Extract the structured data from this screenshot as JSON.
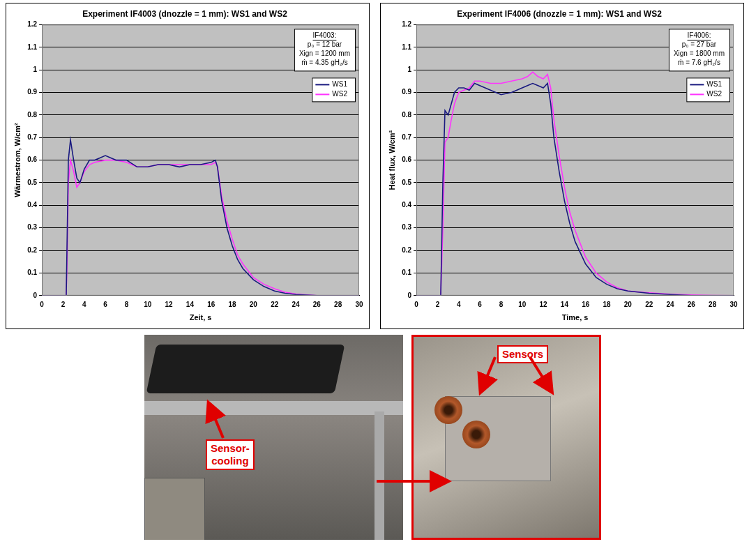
{
  "chart_data": [
    {
      "type": "line",
      "title": "Experiment IF4003 (dnozzle = 1 mm): WS1 and WS2",
      "x_label": "Zeit, s",
      "y_label": "Wärmestrom, W/cm²",
      "annotation": [
        "IF4003:",
        "p₀ = 12 bar",
        "Xign = 1200 mm",
        "ṁ = 4.35 gH₂/s"
      ],
      "x": [
        0,
        2,
        2.3,
        2.4,
        2.5,
        2.7,
        3,
        3.3,
        3.6,
        4,
        4.5,
        5,
        6,
        7,
        8,
        9,
        10,
        11,
        12,
        13,
        14,
        15,
        16,
        16.4,
        16.6,
        17,
        17.5,
        18,
        18.5,
        19,
        20,
        21,
        22,
        23,
        24,
        26,
        28,
        30
      ],
      "series": [
        {
          "name": "WS1",
          "color": "#1a1a80",
          "values": [
            0,
            0,
            0,
            0.3,
            0.6,
            0.69,
            0.6,
            0.52,
            0.5,
            0.56,
            0.6,
            0.6,
            0.62,
            0.6,
            0.6,
            0.57,
            0.57,
            0.58,
            0.58,
            0.57,
            0.58,
            0.58,
            0.59,
            0.6,
            0.57,
            0.42,
            0.3,
            0.22,
            0.16,
            0.12,
            0.07,
            0.04,
            0.02,
            0.01,
            0.005,
            0,
            0,
            0
          ]
        },
        {
          "name": "WS2",
          "color": "#ff33ff",
          "values": [
            0,
            0,
            0,
            0.2,
            0.5,
            0.6,
            0.55,
            0.48,
            0.5,
            0.55,
            0.58,
            0.59,
            0.6,
            0.6,
            0.59,
            0.57,
            0.57,
            0.58,
            0.58,
            0.58,
            0.58,
            0.58,
            0.58,
            0.59,
            0.57,
            0.44,
            0.33,
            0.25,
            0.18,
            0.14,
            0.08,
            0.05,
            0.03,
            0.015,
            0.007,
            0,
            0,
            0
          ]
        }
      ],
      "xlim": [
        0,
        30
      ],
      "xticks": [
        0,
        2,
        4,
        6,
        8,
        10,
        12,
        14,
        16,
        18,
        20,
        22,
        24,
        26,
        28,
        30
      ],
      "ylim": [
        0,
        1.2
      ],
      "yticks": [
        0,
        0.1,
        0.2,
        0.3,
        0.4,
        0.5,
        0.6,
        0.7,
        0.8,
        0.9,
        1,
        1.1,
        1.2
      ],
      "grid": true,
      "legend": "upper right"
    },
    {
      "type": "line",
      "title": "Experiment IF4006 (dnozzle = 1 mm): WS1 and WS2",
      "x_label": "Time, s",
      "y_label": "Heat flux, W/cm²",
      "annotation": [
        "IF4006:",
        "p₀ = 27 bar",
        "Xign = 1800 mm",
        "ṁ = 7.6 gH₂/s"
      ],
      "x": [
        0,
        2,
        2.3,
        2.5,
        2.7,
        3,
        3.3,
        3.6,
        4,
        4.5,
        5,
        5.5,
        6,
        7,
        8,
        9,
        10,
        10.5,
        11,
        11.5,
        12,
        12.4,
        12.7,
        13,
        13.5,
        14,
        14.5,
        15,
        16,
        17,
        18,
        19,
        20,
        22,
        24,
        26,
        28,
        30
      ],
      "series": [
        {
          "name": "WS1",
          "color": "#1a1a80",
          "values": [
            0,
            0,
            0,
            0.5,
            0.82,
            0.8,
            0.85,
            0.9,
            0.92,
            0.92,
            0.91,
            0.94,
            0.93,
            0.91,
            0.89,
            0.9,
            0.92,
            0.93,
            0.94,
            0.93,
            0.92,
            0.94,
            0.85,
            0.7,
            0.55,
            0.42,
            0.32,
            0.24,
            0.14,
            0.08,
            0.05,
            0.03,
            0.02,
            0.01,
            0.005,
            0,
            0,
            0
          ]
        },
        {
          "name": "WS2",
          "color": "#ff33ff",
          "values": [
            0,
            0,
            0,
            0.3,
            0.68,
            0.7,
            0.78,
            0.85,
            0.9,
            0.91,
            0.92,
            0.95,
            0.95,
            0.94,
            0.94,
            0.95,
            0.96,
            0.97,
            0.99,
            0.97,
            0.96,
            0.98,
            0.92,
            0.78,
            0.62,
            0.48,
            0.37,
            0.29,
            0.17,
            0.1,
            0.06,
            0.035,
            0.02,
            0.012,
            0.006,
            0.003,
            0.001,
            0
          ]
        }
      ],
      "xlim": [
        0,
        30
      ],
      "xticks": [
        0,
        2,
        4,
        6,
        8,
        10,
        12,
        14,
        16,
        18,
        20,
        22,
        24,
        26,
        28,
        30
      ],
      "ylim": [
        0,
        1.2
      ],
      "yticks": [
        0,
        0.1,
        0.2,
        0.3,
        0.4,
        0.5,
        0.6,
        0.7,
        0.8,
        0.9,
        1,
        1.1,
        1.2
      ],
      "grid": true,
      "legend": "upper right"
    }
  ],
  "photos": [
    {
      "labels": [
        "Sensor-cooling"
      ]
    },
    {
      "labels": [
        "Sensors"
      ]
    }
  ]
}
